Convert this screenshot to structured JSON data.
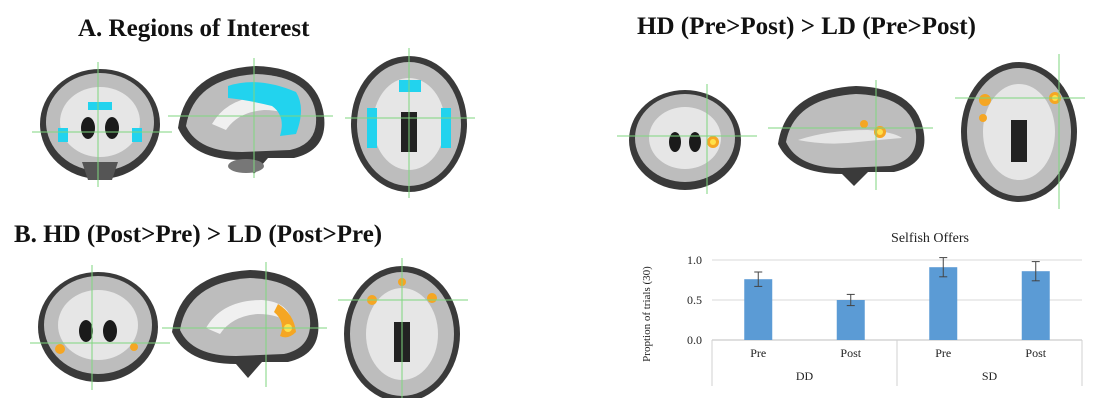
{
  "figure": {
    "panel_a_title": "A. Regions of Interest",
    "panel_b_title": "B. HD (Post>Pre) > LD (Post>Pre)",
    "panel_c_title": "HD (Pre>Post) > LD (Pre>Post)"
  },
  "colors": {
    "roi_mask": "#22d3ee",
    "activation": "#f5a623",
    "activation_core": "#ffe14a",
    "crosshair": "#7fd67f",
    "bar": "#5b9bd5"
  },
  "chart_data": {
    "type": "bar",
    "title": "Selfish Offers",
    "ylabel": "Proption of trials (30)",
    "ylim": [
      0,
      1.0
    ],
    "yticks": [
      "0.0",
      "0.5",
      "1.0"
    ],
    "categories": [
      "Pre",
      "Post",
      "Pre",
      "Post"
    ],
    "groups": [
      "DD",
      "SD"
    ],
    "values": [
      0.76,
      0.5,
      0.91,
      0.86
    ],
    "errors": [
      0.09,
      0.07,
      0.12,
      0.12
    ],
    "grid": true
  }
}
